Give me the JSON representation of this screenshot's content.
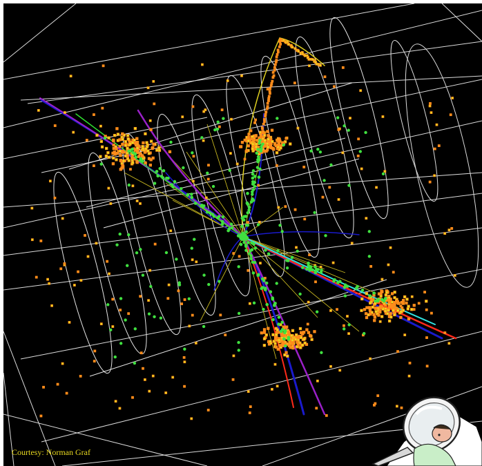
{
  "credit": {
    "text": "Courtesy: Norman Graf",
    "color": "#e8d820"
  },
  "scene": {
    "background": "#000000",
    "detector_line_color": "#e6e6e6",
    "track_colors": [
      "#1a1acc",
      "#9a20c8",
      "#e0d020",
      "#ff2a1a",
      "#30e0e0",
      "#30e030"
    ],
    "hit_colors": [
      "#ff8c1a",
      "#e8e020",
      "#40e040"
    ],
    "decoration": "magnifying-glass-clipart"
  }
}
